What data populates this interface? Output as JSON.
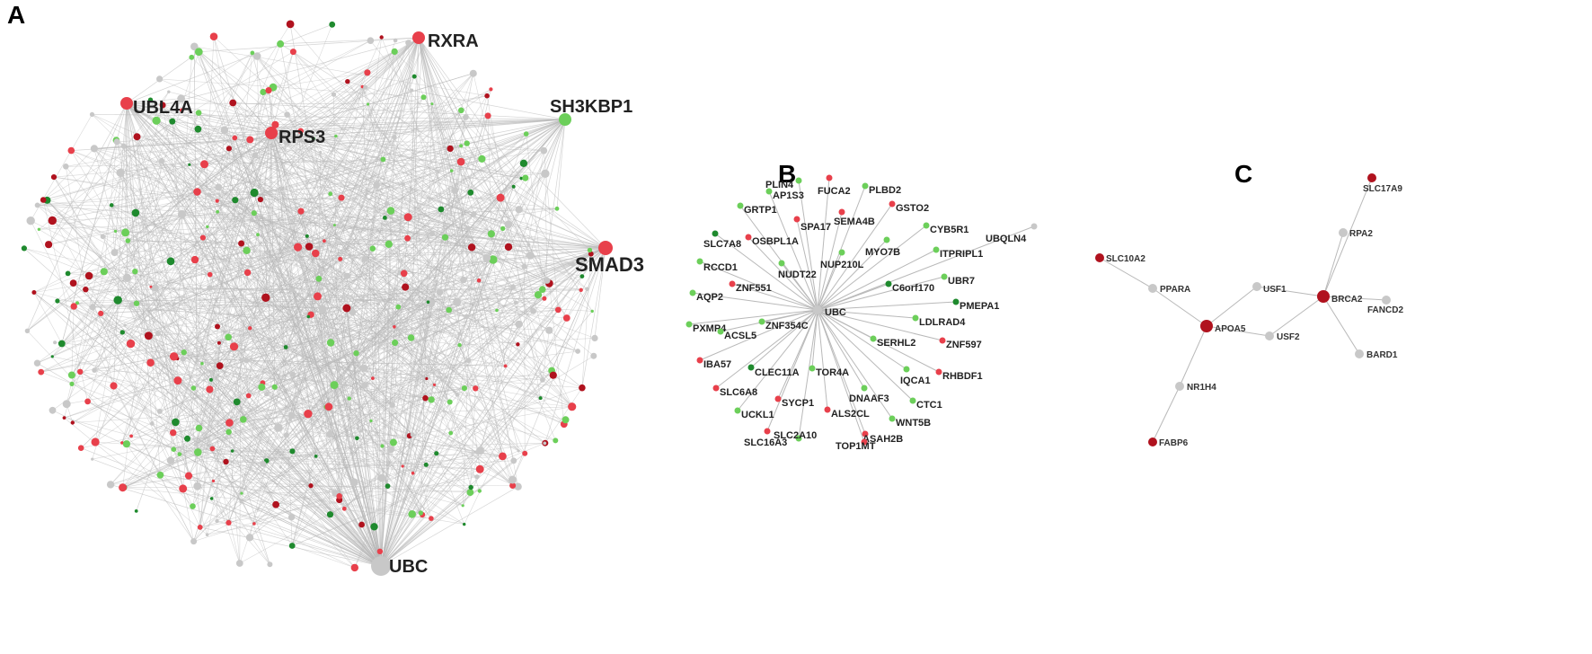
{
  "colors": {
    "edge": "#b9b9b9",
    "gray_node": "#c8c8c8",
    "red_node": "#e8404b",
    "dark_red_node": "#b0121e",
    "light_green_node": "#6ccf5a",
    "dark_green_node": "#1f8a2e"
  },
  "panels": [
    {
      "id": "A",
      "letter": "A"
    },
    {
      "id": "B",
      "letter": "B"
    },
    {
      "id": "C",
      "letter": "C"
    }
  ],
  "panel_a": {
    "hubs": [
      {
        "label": "RXRA",
        "color": "red"
      },
      {
        "label": "UBL4A",
        "color": "red"
      },
      {
        "label": "RPS3",
        "color": "red"
      },
      {
        "label": "SH3KBP1",
        "color": "green"
      },
      {
        "label": "SMAD3",
        "color": "red"
      },
      {
        "label": "UBC",
        "color": "gray"
      }
    ]
  },
  "panel_b": {
    "center": "UBC",
    "nodes": [
      {
        "label": "PLIN4",
        "color": "light_green"
      },
      {
        "label": "AP1S3",
        "color": "light_green"
      },
      {
        "label": "FUCA2",
        "color": "red"
      },
      {
        "label": "PLBD2",
        "color": "light_green"
      },
      {
        "label": "GRTP1",
        "color": "light_green"
      },
      {
        "label": "SPA17",
        "color": "red"
      },
      {
        "label": "SEMA4B",
        "color": "red"
      },
      {
        "label": "GSTO2",
        "color": "red"
      },
      {
        "label": "CYB5R1",
        "color": "light_green"
      },
      {
        "label": "UBQLN4",
        "color": "gray"
      },
      {
        "label": "SLC7A8",
        "color": "dark_green"
      },
      {
        "label": "OSBPL1A",
        "color": "red"
      },
      {
        "label": "MYO7B",
        "color": "light_green"
      },
      {
        "label": "ITPRIPL1",
        "color": "light_green"
      },
      {
        "label": "RCCD1",
        "color": "light_green"
      },
      {
        "label": "NUDT22",
        "color": "light_green"
      },
      {
        "label": "NUP210L",
        "color": "light_green"
      },
      {
        "label": "UBR7",
        "color": "light_green"
      },
      {
        "label": "ZNF551",
        "color": "red"
      },
      {
        "label": "C6orf170",
        "color": "dark_green"
      },
      {
        "label": "AQP2",
        "color": "light_green"
      },
      {
        "label": "PMEPA1",
        "color": "dark_green"
      },
      {
        "label": "PXMP4",
        "color": "light_green"
      },
      {
        "label": "ZNF354C",
        "color": "light_green"
      },
      {
        "label": "LDLRAD4",
        "color": "light_green"
      },
      {
        "label": "ACSL5",
        "color": "light_green"
      },
      {
        "label": "SERHL2",
        "color": "light_green"
      },
      {
        "label": "ZNF597",
        "color": "red"
      },
      {
        "label": "IBA57",
        "color": "red"
      },
      {
        "label": "CLEC11A",
        "color": "dark_green"
      },
      {
        "label": "TOR4A",
        "color": "light_green"
      },
      {
        "label": "IQCA1",
        "color": "light_green"
      },
      {
        "label": "RHBDF1",
        "color": "red"
      },
      {
        "label": "SLC6A8",
        "color": "red"
      },
      {
        "label": "SYCP1",
        "color": "red"
      },
      {
        "label": "DNAAF3",
        "color": "light_green"
      },
      {
        "label": "CTC1",
        "color": "light_green"
      },
      {
        "label": "UCKL1",
        "color": "light_green"
      },
      {
        "label": "ALS2CL",
        "color": "red"
      },
      {
        "label": "WNT5B",
        "color": "light_green"
      },
      {
        "label": "SLC2A10",
        "color": "light_green"
      },
      {
        "label": "SLC16A3",
        "color": "red"
      },
      {
        "label": "ASAH2B",
        "color": "red"
      },
      {
        "label": "TOP1MT",
        "color": "red"
      }
    ]
  },
  "panel_c": {
    "nodes": [
      {
        "label": "SLC17A9",
        "color": "dark_red"
      },
      {
        "label": "RPA2",
        "color": "gray"
      },
      {
        "label": "SLC10A2",
        "color": "dark_red"
      },
      {
        "label": "PPARA",
        "color": "gray"
      },
      {
        "label": "USF1",
        "color": "gray"
      },
      {
        "label": "BRCA2",
        "color": "dark_red"
      },
      {
        "label": "FANCD2",
        "color": "gray"
      },
      {
        "label": "APOA5",
        "color": "dark_red"
      },
      {
        "label": "USF2",
        "color": "gray"
      },
      {
        "label": "BARD1",
        "color": "gray"
      },
      {
        "label": "NR1H4",
        "color": "gray"
      },
      {
        "label": "FABP6",
        "color": "dark_red"
      }
    ]
  }
}
